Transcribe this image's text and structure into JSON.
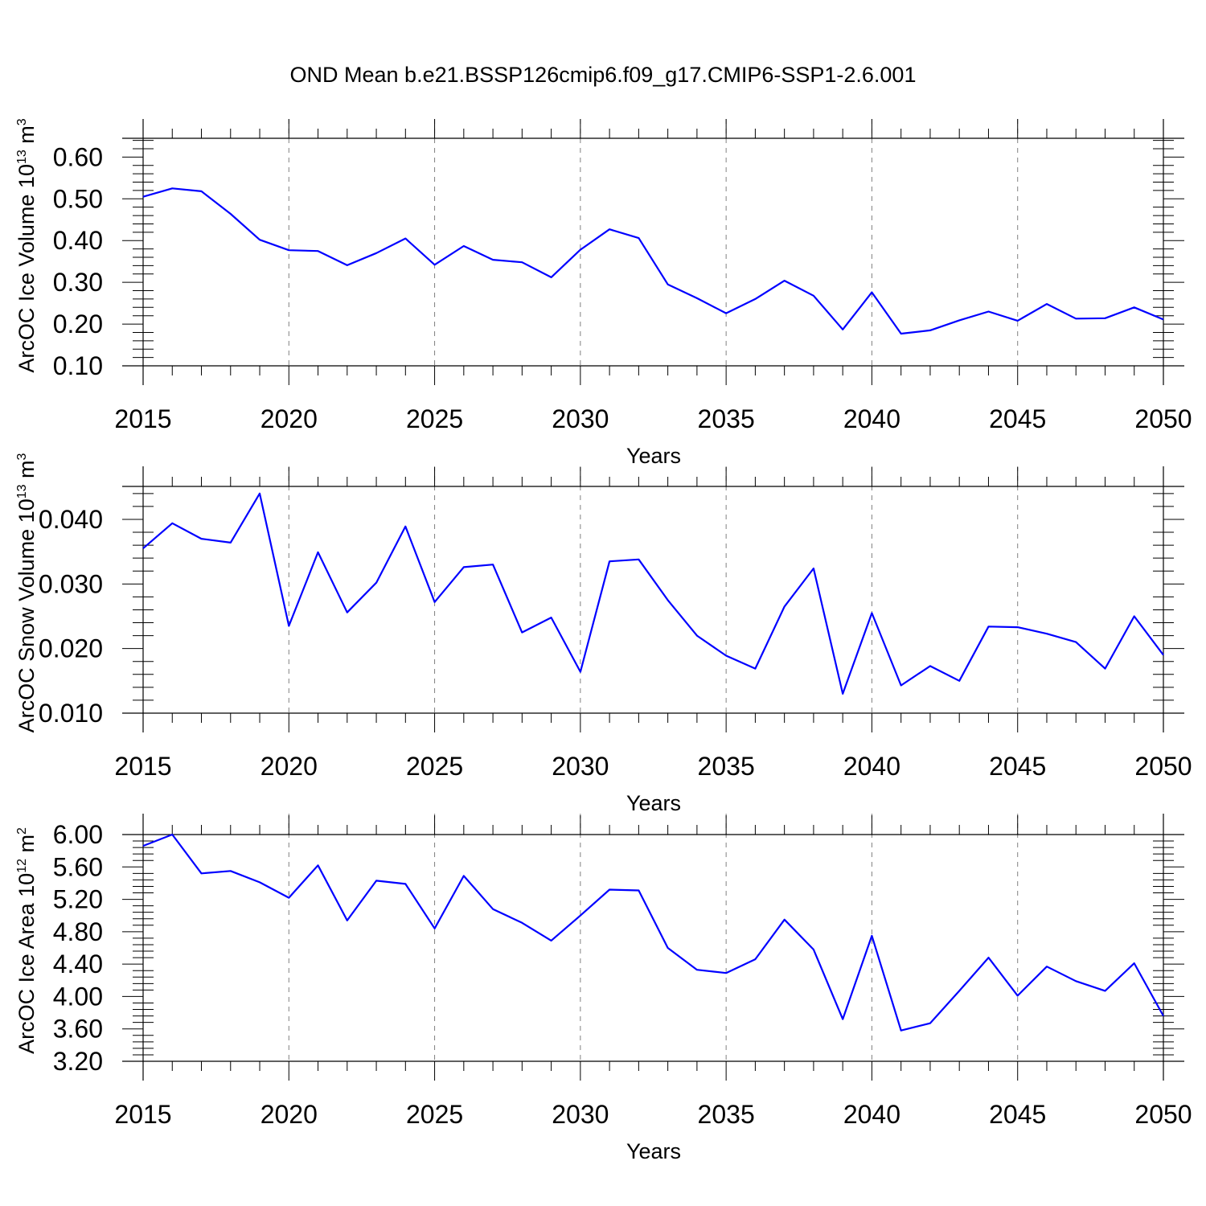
{
  "figure": {
    "title": "OND Mean b.e21.BSSP126cmip6.f09_g17.CMIP6-SSP1-2.6.001"
  },
  "colors": {
    "series": "#0000ff",
    "axes": "#000000",
    "grid": "#808080"
  },
  "chart_data": [
    {
      "type": "line",
      "xlabel": "Years",
      "ylabel": "ArcOC Ice Volume 10",
      "ylabel_exponent": "13",
      "ylabel_unit": " m",
      "ylabel_unit_exponent": "3",
      "xlim": [
        2015,
        2050
      ],
      "ylim": [
        0.1,
        0.645
      ],
      "x_ticks": [
        2015,
        2020,
        2025,
        2030,
        2035,
        2040,
        2045,
        2050
      ],
      "x_tick_labels": [
        "2015",
        "2020",
        "2025",
        "2030",
        "2035",
        "2040",
        "2045",
        "2050"
      ],
      "y_ticks": [
        0.1,
        0.2,
        0.3,
        0.4,
        0.5,
        0.6
      ],
      "y_tick_labels": [
        "0.10",
        "0.20",
        "0.30",
        "0.40",
        "0.50",
        "0.60"
      ],
      "grid": "vertical dashed at major x ticks",
      "x": [
        2015,
        2016,
        2017,
        2018,
        2019,
        2020,
        2021,
        2022,
        2023,
        2024,
        2025,
        2026,
        2027,
        2028,
        2029,
        2030,
        2031,
        2032,
        2033,
        2034,
        2035,
        2036,
        2037,
        2038,
        2039,
        2040,
        2041,
        2042,
        2043,
        2044,
        2045,
        2046,
        2047,
        2048,
        2049,
        2050
      ],
      "values": [
        0.505,
        0.525,
        0.518,
        0.464,
        0.402,
        0.377,
        0.375,
        0.341,
        0.37,
        0.405,
        0.342,
        0.387,
        0.354,
        0.348,
        0.312,
        0.378,
        0.427,
        0.406,
        0.295,
        0.262,
        0.226,
        0.26,
        0.304,
        0.268,
        0.187,
        0.276,
        0.177,
        0.185,
        0.209,
        0.23,
        0.208,
        0.248,
        0.213,
        0.214,
        0.24,
        0.211
      ]
    },
    {
      "type": "line",
      "xlabel": "Years",
      "ylabel": "ArcOC Snow Volume 10",
      "ylabel_exponent": "13",
      "ylabel_unit": " m",
      "ylabel_unit_exponent": "3",
      "xlim": [
        2015,
        2050
      ],
      "ylim": [
        0.01,
        0.0451
      ],
      "x_ticks": [
        2015,
        2020,
        2025,
        2030,
        2035,
        2040,
        2045,
        2050
      ],
      "x_tick_labels": [
        "2015",
        "2020",
        "2025",
        "2030",
        "2035",
        "2040",
        "2045",
        "2050"
      ],
      "y_ticks": [
        0.01,
        0.02,
        0.03,
        0.04
      ],
      "y_tick_labels": [
        "0.010",
        "0.020",
        "0.030",
        "0.040"
      ],
      "grid": "vertical dashed at major x ticks",
      "x": [
        2015,
        2016,
        2017,
        2018,
        2019,
        2020,
        2021,
        2022,
        2023,
        2024,
        2025,
        2026,
        2027,
        2028,
        2029,
        2030,
        2031,
        2032,
        2033,
        2034,
        2035,
        2036,
        2037,
        2038,
        2039,
        2040,
        2041,
        2042,
        2043,
        2044,
        2045,
        2046,
        2047,
        2048,
        2049,
        2050
      ],
      "values": [
        0.0355,
        0.0394,
        0.037,
        0.0364,
        0.044,
        0.0235,
        0.0349,
        0.0256,
        0.0302,
        0.0389,
        0.0272,
        0.0326,
        0.033,
        0.0225,
        0.0248,
        0.0164,
        0.0335,
        0.0338,
        0.0275,
        0.022,
        0.0189,
        0.0169,
        0.0265,
        0.0324,
        0.013,
        0.0255,
        0.0143,
        0.0173,
        0.015,
        0.0234,
        0.0233,
        0.0223,
        0.021,
        0.0169,
        0.025,
        0.019
      ]
    },
    {
      "type": "line",
      "xlabel": "Years",
      "ylabel": "ArcOC Ice Area 10",
      "ylabel_exponent": "12",
      "ylabel_unit": " m",
      "ylabel_unit_exponent": "2",
      "xlim": [
        2015,
        2050
      ],
      "ylim": [
        3.2,
        6.0
      ],
      "x_ticks": [
        2015,
        2020,
        2025,
        2030,
        2035,
        2040,
        2045,
        2050
      ],
      "x_tick_labels": [
        "2015",
        "2020",
        "2025",
        "2030",
        "2035",
        "2040",
        "2045",
        "2050"
      ],
      "y_ticks": [
        3.2,
        3.6,
        4.0,
        4.4,
        4.8,
        5.2,
        5.6,
        6.0
      ],
      "y_tick_labels": [
        "3.20",
        "3.60",
        "4.00",
        "4.40",
        "4.80",
        "5.20",
        "5.60",
        "6.00"
      ],
      "grid": "vertical dashed at major x ticks",
      "x": [
        2015,
        2016,
        2017,
        2018,
        2019,
        2020,
        2021,
        2022,
        2023,
        2024,
        2025,
        2026,
        2027,
        2028,
        2029,
        2030,
        2031,
        2032,
        2033,
        2034,
        2035,
        2036,
        2037,
        2038,
        2039,
        2040,
        2041,
        2042,
        2043,
        2044,
        2045,
        2046,
        2047,
        2048,
        2049,
        2050
      ],
      "values": [
        5.86,
        6.0,
        5.52,
        5.55,
        5.41,
        5.22,
        5.62,
        4.94,
        5.43,
        5.39,
        4.84,
        5.49,
        5.08,
        4.91,
        4.69,
        5.0,
        5.32,
        5.31,
        4.6,
        4.33,
        4.29,
        4.46,
        4.95,
        4.58,
        3.72,
        4.75,
        3.58,
        3.67,
        4.07,
        4.48,
        4.01,
        4.37,
        4.19,
        4.07,
        4.41,
        3.76
      ]
    }
  ]
}
